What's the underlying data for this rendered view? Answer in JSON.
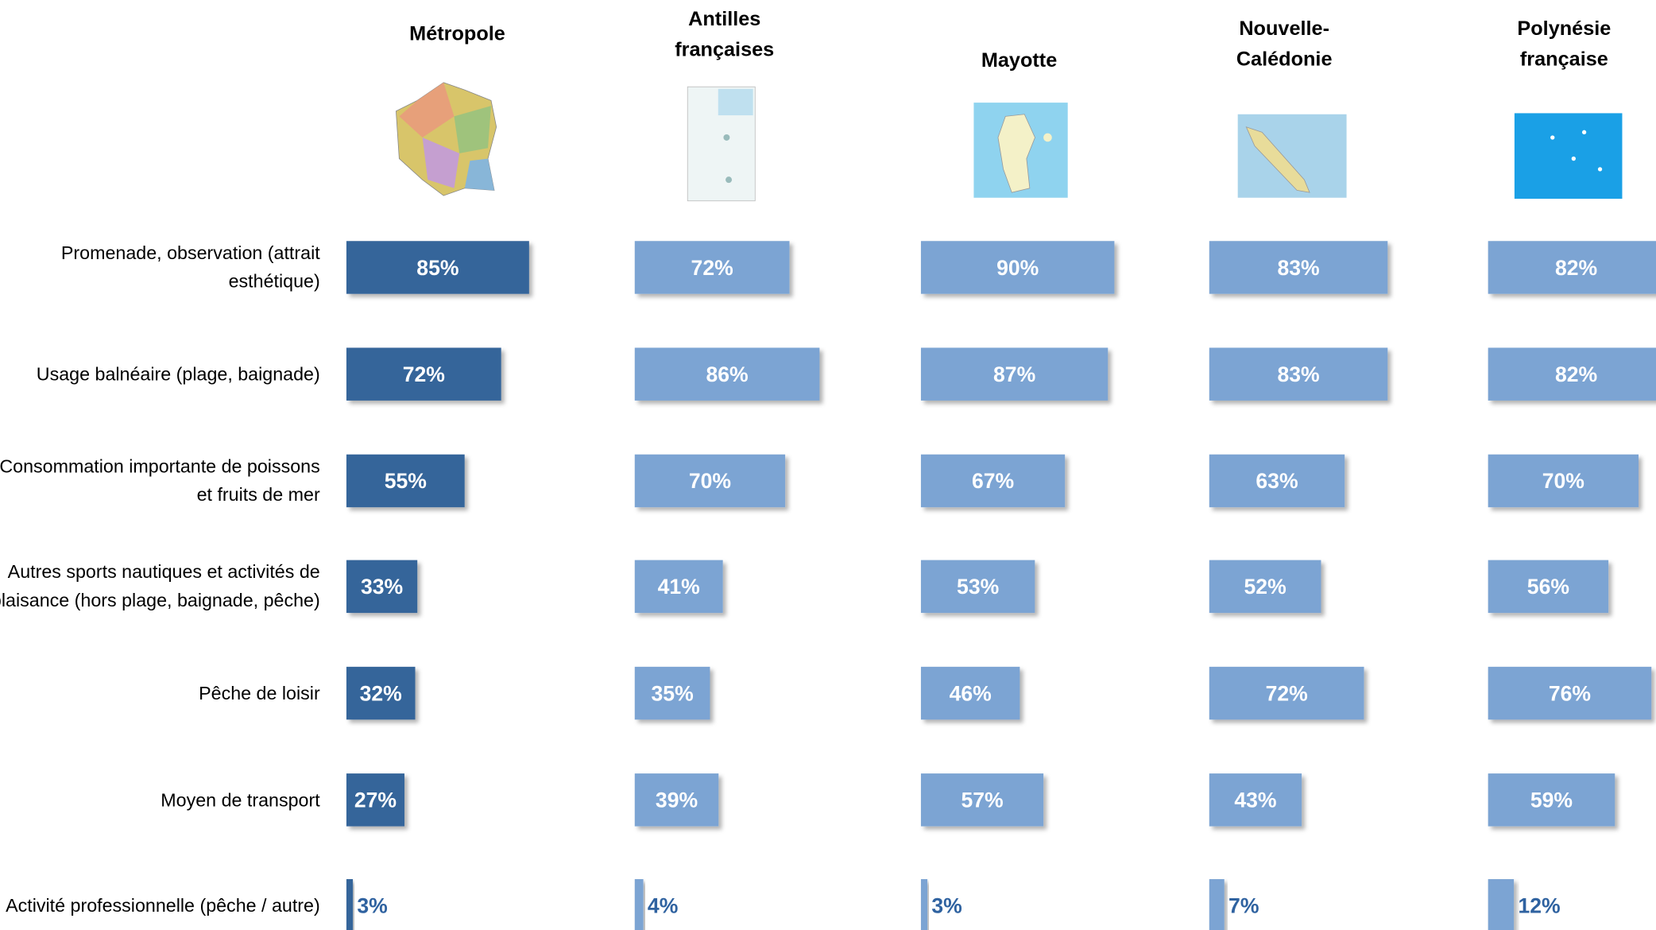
{
  "chart_data": {
    "type": "bar",
    "orientation": "horizontal",
    "categories": [
      "Promenade, observation (attrait esthétique)",
      "Usage balnéaire (plage, baignade)",
      "Consommation importante de poissons et fruits de mer",
      "Autres sports nautiques et activités de plaisance (hors plage, baignade, pêche)",
      "Pêche de loisir",
      "Moyen de transport",
      "Activité professionnelle (pêche / autre)"
    ],
    "xlim": [
      0,
      100
    ],
    "series": [
      {
        "name": "Métropole",
        "color": "#35659a",
        "values": [
          85,
          72,
          55,
          33,
          32,
          27,
          3
        ],
        "value_labels": [
          "85%",
          "72%",
          "55%",
          "33%",
          "32%",
          "27%",
          "3%"
        ]
      },
      {
        "name": "Antilles françaises",
        "color": "#7ba4d3",
        "values": [
          72,
          86,
          70,
          41,
          35,
          39,
          4
        ],
        "value_labels": [
          "72%",
          "86%",
          "70%",
          "41%",
          "35%",
          "39%",
          "4%"
        ]
      },
      {
        "name": "Mayotte",
        "color": "#7ba4d3",
        "values": [
          90,
          87,
          67,
          53,
          46,
          57,
          3
        ],
        "value_labels": [
          "90%",
          "87%",
          "67%",
          "53%",
          "46%",
          "57%",
          "3%"
        ]
      },
      {
        "name": "Nouvelle-Calédonie",
        "color": "#7ba4d3",
        "values": [
          83,
          83,
          63,
          52,
          72,
          43,
          7
        ],
        "value_labels": [
          "83%",
          "83%",
          "63%",
          "52%",
          "72%",
          "43%",
          "7%"
        ]
      },
      {
        "name": "Polynésie française",
        "color": "#7ba4d3",
        "values": [
          82,
          82,
          70,
          56,
          76,
          59,
          12
        ],
        "value_labels": [
          "82%",
          "82%",
          "70%",
          "56%",
          "76%",
          "59%",
          "12%"
        ]
      }
    ]
  }
}
